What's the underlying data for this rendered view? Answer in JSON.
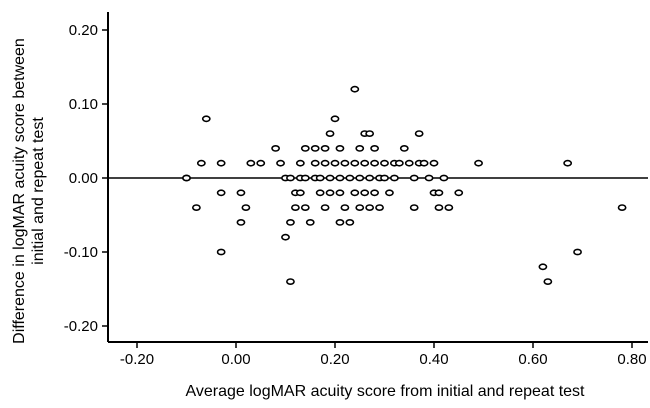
{
  "chart_data": {
    "type": "scatter",
    "title": "",
    "xlabel": "Average logMAR acuity score from initial and repeat test",
    "ylabel_lines": [
      "Difference in logMAR acuity score between",
      "initial and repeat test"
    ],
    "xlim": [
      -0.27,
      0.83
    ],
    "ylim": [
      -0.24,
      0.24
    ],
    "x_ticks": [
      -0.2,
      0.0,
      0.2,
      0.4,
      0.6,
      0.8
    ],
    "x_tick_labels": [
      "-0.20",
      "0.00",
      "0.20",
      "0.40",
      "0.60",
      "0.80"
    ],
    "y_ticks": [
      -0.2,
      -0.1,
      0.0,
      0.1,
      0.2
    ],
    "y_tick_labels": [
      "-0.20",
      "-0.10",
      "0.00",
      "0.10",
      "0.20"
    ],
    "reference_line_y": 0.0,
    "grid": false,
    "marker": "open-ellipse",
    "color": "#000000",
    "points": [
      [
        -0.1,
        0.0
      ],
      [
        -0.1,
        0.0
      ],
      [
        -0.07,
        0.02
      ],
      [
        -0.06,
        0.08
      ],
      [
        -0.08,
        -0.04
      ],
      [
        -0.03,
        0.02
      ],
      [
        -0.03,
        -0.02
      ],
      [
        -0.03,
        -0.1
      ],
      [
        0.01,
        -0.02
      ],
      [
        0.02,
        -0.04
      ],
      [
        0.01,
        -0.06
      ],
      [
        0.03,
        0.02
      ],
      [
        0.05,
        0.02
      ],
      [
        0.08,
        0.04
      ],
      [
        0.09,
        0.02
      ],
      [
        0.1,
        0.0
      ],
      [
        0.1,
        -0.08
      ],
      [
        0.11,
        -0.14
      ],
      [
        0.11,
        -0.06
      ],
      [
        0.11,
        0.0
      ],
      [
        0.12,
        -0.02
      ],
      [
        0.12,
        -0.04
      ],
      [
        0.13,
        0.02
      ],
      [
        0.13,
        0.0
      ],
      [
        0.13,
        -0.02
      ],
      [
        0.14,
        0.04
      ],
      [
        0.14,
        0.0
      ],
      [
        0.14,
        -0.04
      ],
      [
        0.15,
        -0.06
      ],
      [
        0.16,
        0.04
      ],
      [
        0.16,
        0.02
      ],
      [
        0.16,
        0.0
      ],
      [
        0.17,
        0.0
      ],
      [
        0.17,
        -0.02
      ],
      [
        0.18,
        0.02
      ],
      [
        0.18,
        0.04
      ],
      [
        0.18,
        -0.04
      ],
      [
        0.19,
        0.06
      ],
      [
        0.19,
        0.0
      ],
      [
        0.19,
        -0.02
      ],
      [
        0.2,
        0.08
      ],
      [
        0.2,
        0.02
      ],
      [
        0.21,
        0.04
      ],
      [
        0.21,
        0.0
      ],
      [
        0.21,
        -0.02
      ],
      [
        0.21,
        -0.06
      ],
      [
        0.22,
        0.02
      ],
      [
        0.22,
        -0.04
      ],
      [
        0.23,
        -0.06
      ],
      [
        0.23,
        0.0
      ],
      [
        0.24,
        0.12
      ],
      [
        0.24,
        0.02
      ],
      [
        0.24,
        -0.02
      ],
      [
        0.25,
        0.04
      ],
      [
        0.25,
        0.0
      ],
      [
        0.25,
        -0.04
      ],
      [
        0.26,
        0.06
      ],
      [
        0.26,
        0.02
      ],
      [
        0.26,
        -0.02
      ],
      [
        0.27,
        0.06
      ],
      [
        0.27,
        0.0
      ],
      [
        0.27,
        -0.04
      ],
      [
        0.28,
        0.04
      ],
      [
        0.28,
        0.02
      ],
      [
        0.28,
        -0.02
      ],
      [
        0.29,
        0.0
      ],
      [
        0.29,
        -0.04
      ],
      [
        0.3,
        0.02
      ],
      [
        0.3,
        0.0
      ],
      [
        0.31,
        -0.02
      ],
      [
        0.32,
        0.02
      ],
      [
        0.32,
        0.0
      ],
      [
        0.33,
        0.02
      ],
      [
        0.34,
        0.04
      ],
      [
        0.35,
        0.02
      ],
      [
        0.36,
        0.0
      ],
      [
        0.36,
        -0.04
      ],
      [
        0.37,
        0.06
      ],
      [
        0.37,
        0.02
      ],
      [
        0.38,
        0.02
      ],
      [
        0.39,
        0.0
      ],
      [
        0.4,
        0.02
      ],
      [
        0.4,
        -0.02
      ],
      [
        0.41,
        -0.04
      ],
      [
        0.42,
        0.0
      ],
      [
        0.41,
        -0.02
      ],
      [
        0.43,
        -0.04
      ],
      [
        0.45,
        -0.02
      ],
      [
        0.49,
        0.02
      ],
      [
        0.62,
        -0.12
      ],
      [
        0.63,
        -0.14
      ],
      [
        0.67,
        0.02
      ],
      [
        0.69,
        -0.1
      ],
      [
        0.78,
        -0.04
      ]
    ]
  }
}
